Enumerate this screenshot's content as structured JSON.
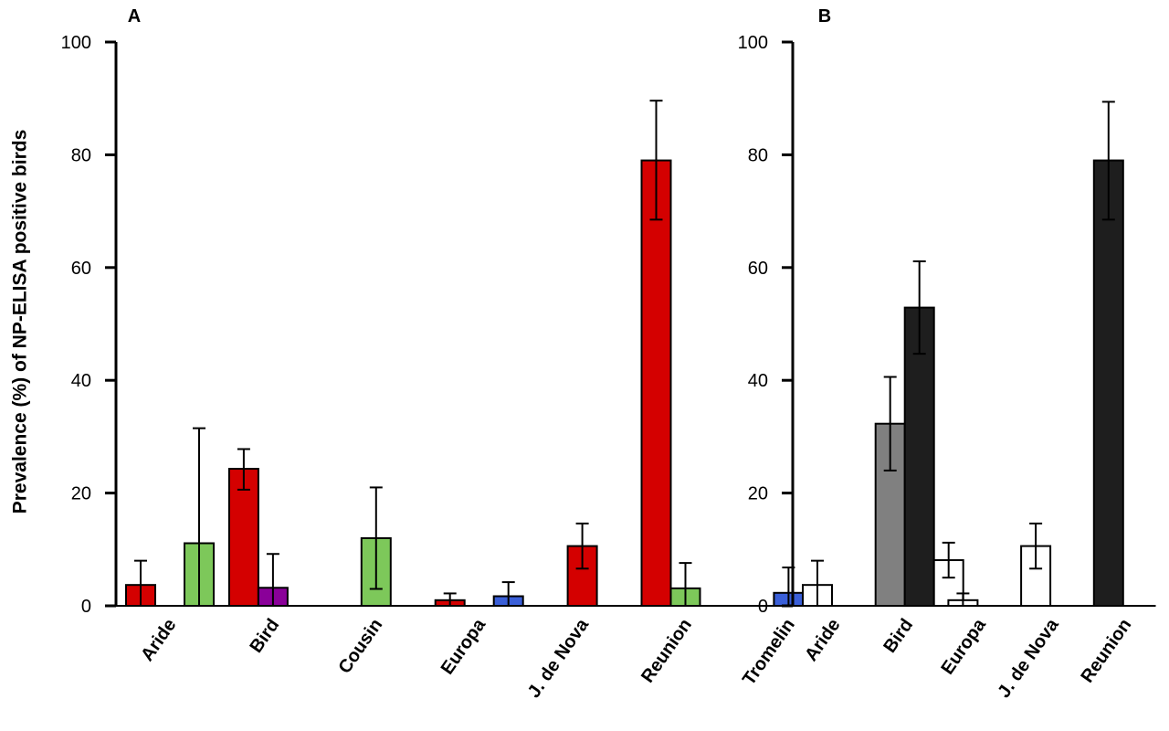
{
  "ylabel": "Prevalence (%) of NP-ELISA positive birds",
  "chart_data": [
    {
      "type": "bar",
      "panel": "A",
      "ylim": [
        0,
        100
      ],
      "yticks": [
        "0",
        "20",
        "40",
        "60",
        "80",
        "100"
      ],
      "categories": [
        "Aride",
        "Bird",
        "Cousin",
        "Europa",
        "J. de Nova",
        "Reunion",
        "Tromelin"
      ],
      "bars": [
        {
          "category": "Aride",
          "slot": 0,
          "value": 3.7,
          "err_low": 0.0,
          "err_high": 8.0,
          "color": "#d40000"
        },
        {
          "category": "Aride",
          "slot": 2,
          "value": 11.1,
          "err_low": 0.0,
          "err_high": 31.5,
          "color": "#7dc85a"
        },
        {
          "category": "Bird",
          "slot": 0,
          "value": 24.3,
          "err_low": 20.6,
          "err_high": 27.8,
          "color": "#d40000"
        },
        {
          "category": "Bird",
          "slot": 1,
          "value": 3.2,
          "err_low": 0.0,
          "err_high": 9.2,
          "color": "#8a0099"
        },
        {
          "category": "Cousin",
          "slot": 1,
          "value": 12.0,
          "err_low": 3.0,
          "err_high": 21.0,
          "color": "#7dc85a"
        },
        {
          "category": "Europa",
          "slot": 0,
          "value": 1.0,
          "err_low": 0.0,
          "err_high": 2.2,
          "color": "#d40000"
        },
        {
          "category": "Europa",
          "slot": 2,
          "value": 1.7,
          "err_low": 0.0,
          "err_high": 4.2,
          "color": "#3a5fd8"
        },
        {
          "category": "J. de Nova",
          "slot": 1,
          "value": 10.6,
          "err_low": 6.6,
          "err_high": 14.6,
          "color": "#d40000"
        },
        {
          "category": "Reunion",
          "slot": 0,
          "value": 79.0,
          "err_low": 68.5,
          "err_high": 89.6,
          "color": "#d40000"
        },
        {
          "category": "Reunion",
          "slot": 1,
          "value": 3.1,
          "err_low": 0.0,
          "err_high": 7.6,
          "color": "#7dc85a"
        },
        {
          "category": "Tromelin",
          "slot": 1,
          "value": 2.3,
          "err_low": 0.0,
          "err_high": 6.8,
          "color": "#3a5fd8"
        }
      ]
    },
    {
      "type": "bar",
      "panel": "B",
      "ylim": [
        0,
        100
      ],
      "yticks": [
        "0",
        "20",
        "40",
        "60",
        "80",
        "100"
      ],
      "categories": [
        "Aride",
        "Bird",
        "Europa",
        "J. de Nova",
        "Reunion"
      ],
      "bars": [
        {
          "category": "Aride",
          "slot": 0,
          "value": 3.7,
          "err_low": 0.0,
          "err_high": 8.0,
          "color": "#ffffff"
        },
        {
          "category": "Bird",
          "slot": 0,
          "value": 32.3,
          "err_low": 24.0,
          "err_high": 40.6,
          "color": "#808080"
        },
        {
          "category": "Bird",
          "slot": 1,
          "value": 52.9,
          "err_low": 44.7,
          "err_high": 61.1,
          "color": "#1e1e1e"
        },
        {
          "category": "Bird",
          "slot": 2,
          "value": 8.1,
          "err_low": 5.0,
          "err_high": 11.2,
          "color": "#ffffff"
        },
        {
          "category": "Europa",
          "slot": 0,
          "value": 1.0,
          "err_low": 0.0,
          "err_high": 2.2,
          "color": "#ffffff"
        },
        {
          "category": "J. de Nova",
          "slot": 0,
          "value": 10.6,
          "err_low": 6.6,
          "err_high": 14.6,
          "color": "#ffffff"
        },
        {
          "category": "Reunion",
          "slot": 0,
          "value": 79.0,
          "err_low": 68.5,
          "err_high": 89.4,
          "color": "#1e1e1e"
        }
      ]
    }
  ]
}
